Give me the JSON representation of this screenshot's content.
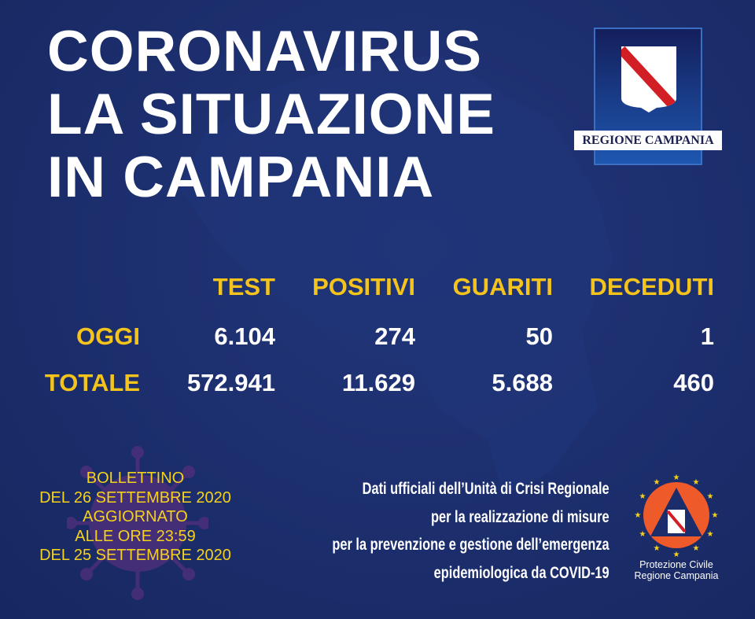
{
  "title": {
    "line1": "CORONAVIRUS",
    "line2": "LA SITUAZIONE",
    "line3": "IN CAMPANIA"
  },
  "logo": {
    "label": "REGIONE CAMPANIA"
  },
  "table": {
    "headers": [
      "TEST",
      "POSITIVI",
      "GUARITI",
      "DECEDUTI"
    ],
    "rows": [
      {
        "label": "OGGI",
        "values": [
          "6.104",
          "274",
          "50",
          "1"
        ]
      },
      {
        "label": "TOTALE",
        "values": [
          "572.941",
          "11.629",
          "5.688",
          "460"
        ]
      }
    ]
  },
  "bulletin": {
    "lines": [
      "BOLLETTINO",
      "DEL 26 SETTEMBRE 2020",
      "AGGIORNATO",
      "ALLE ORE 23:59",
      "DEL 25 SETTEMBRE 2020"
    ]
  },
  "official": {
    "lines": [
      "Dati ufficiali dell’Unità di Crisi Regionale",
      "per la realizzazione di misure",
      "per la prevenzione e gestione dell’emergenza",
      "epidemiologica da COVID-19"
    ]
  },
  "civil_protection": {
    "line1": "Protezione Civile",
    "line2": "Regione Campania"
  },
  "colors": {
    "background": "#1b2d6b",
    "accent_yellow": "#f4c31c",
    "text": "#ffffff",
    "pc_orange": "#ef5a2a"
  }
}
